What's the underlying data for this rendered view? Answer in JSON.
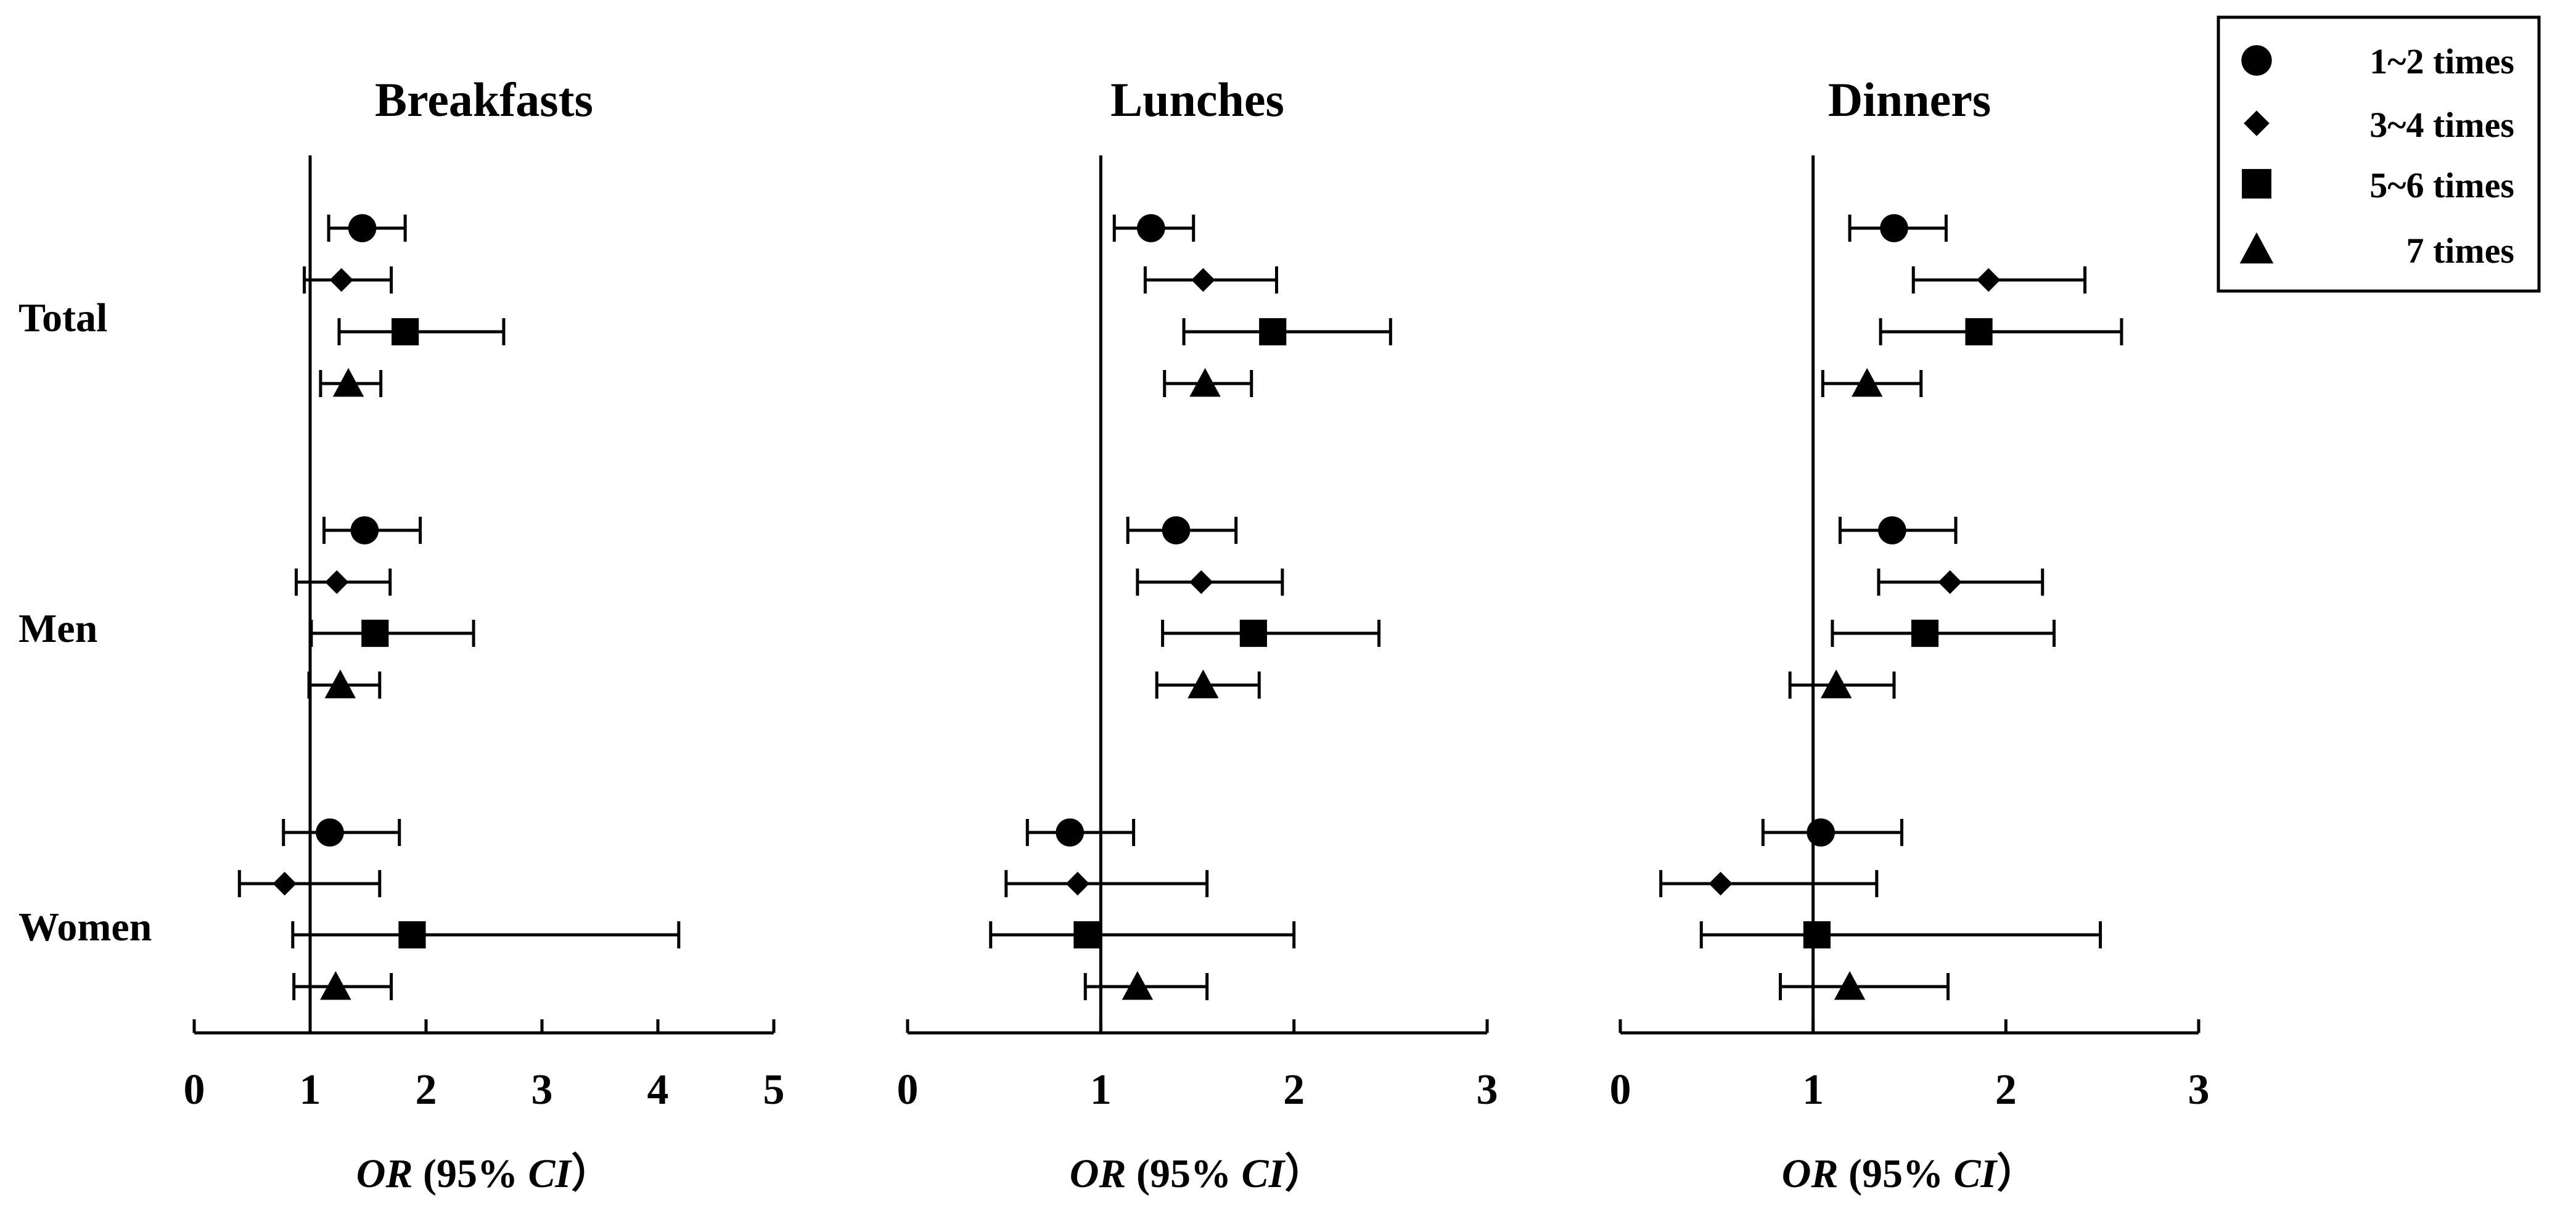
{
  "chart_data": {
    "type": "forest",
    "x_axis_label": {
      "italic_part_1": "OR",
      "plain_part": " (95% ",
      "italic_part_2": "CI",
      "close_paren": "）"
    },
    "row_groups": [
      "Total",
      "Men",
      "Women"
    ],
    "legend": {
      "placement": "top-right",
      "entries": [
        {
          "label": "1~2 times",
          "marker": "circle"
        },
        {
          "label": "3~4 times",
          "marker": "diamond"
        },
        {
          "label": "5~6 times",
          "marker": "square"
        },
        {
          "label": "7 times",
          "marker": "triangle"
        }
      ]
    },
    "panels": [
      {
        "title": "Breakfasts",
        "xlim": [
          0,
          5
        ],
        "ticks": [
          "0",
          "1",
          "2",
          "3",
          "4",
          "5"
        ],
        "reference_line": 1,
        "groups": [
          {
            "name": "Total",
            "points": [
              {
                "series": "1~2 times",
                "or": 1.45,
                "lower": 1.16,
                "upper": 1.82
              },
              {
                "series": "3~4 times",
                "or": 1.27,
                "lower": 0.95,
                "upper": 1.7
              },
              {
                "series": "5~6 times",
                "or": 1.82,
                "lower": 1.25,
                "upper": 2.67
              },
              {
                "series": "7 times",
                "or": 1.33,
                "lower": 1.09,
                "upper": 1.61
              }
            ]
          },
          {
            "name": "Men",
            "points": [
              {
                "series": "1~2 times",
                "or": 1.47,
                "lower": 1.12,
                "upper": 1.95
              },
              {
                "series": "3~4 times",
                "or": 1.23,
                "lower": 0.88,
                "upper": 1.69
              },
              {
                "series": "5~6 times",
                "or": 1.56,
                "lower": 1.01,
                "upper": 2.41
              },
              {
                "series": "7 times",
                "or": 1.26,
                "lower": 0.99,
                "upper": 1.6
              }
            ]
          },
          {
            "name": "Women",
            "points": [
              {
                "series": "1~2 times",
                "or": 1.17,
                "lower": 0.77,
                "upper": 1.77
              },
              {
                "series": "3~4 times",
                "or": 0.78,
                "lower": 0.39,
                "upper": 1.6
              },
              {
                "series": "5~6 times",
                "or": 1.88,
                "lower": 0.85,
                "upper": 4.18
              },
              {
                "series": "7 times",
                "or": 1.22,
                "lower": 0.86,
                "upper": 1.7
              }
            ]
          }
        ]
      },
      {
        "title": "Lunches",
        "xlim": [
          0,
          3
        ],
        "ticks": [
          "0",
          "1",
          "2",
          "3"
        ],
        "reference_line": 1,
        "groups": [
          {
            "name": "Total",
            "points": [
              {
                "series": "1~2 times",
                "or": 1.26,
                "lower": 1.07,
                "upper": 1.48
              },
              {
                "series": "3~4 times",
                "or": 1.53,
                "lower": 1.23,
                "upper": 1.91
              },
              {
                "series": "5~6 times",
                "or": 1.89,
                "lower": 1.43,
                "upper": 2.5
              },
              {
                "series": "7 times",
                "or": 1.54,
                "lower": 1.33,
                "upper": 1.78
              }
            ]
          },
          {
            "name": "Men",
            "points": [
              {
                "series": "1~2 times",
                "or": 1.39,
                "lower": 1.14,
                "upper": 1.7
              },
              {
                "series": "3~4 times",
                "or": 1.52,
                "lower": 1.19,
                "upper": 1.94
              },
              {
                "series": "5~6 times",
                "or": 1.79,
                "lower": 1.32,
                "upper": 2.44
              },
              {
                "series": "7 times",
                "or": 1.53,
                "lower": 1.29,
                "upper": 1.82
              }
            ]
          },
          {
            "name": "Women",
            "points": [
              {
                "series": "1~2 times",
                "or": 0.84,
                "lower": 0.62,
                "upper": 1.17
              },
              {
                "series": "3~4 times",
                "or": 0.88,
                "lower": 0.51,
                "upper": 1.55
              },
              {
                "series": "5~6 times",
                "or": 0.93,
                "lower": 0.43,
                "upper": 2.0
              },
              {
                "series": "7 times",
                "or": 1.19,
                "lower": 0.92,
                "upper": 1.55
              }
            ]
          }
        ]
      },
      {
        "title": "Dinners",
        "xlim": [
          0,
          3
        ],
        "ticks": [
          "0",
          "1",
          "2",
          "3"
        ],
        "reference_line": 1,
        "groups": [
          {
            "name": "Total",
            "points": [
              {
                "series": "1~2 times",
                "or": 1.42,
                "lower": 1.19,
                "upper": 1.69
              },
              {
                "series": "3~4 times",
                "or": 1.91,
                "lower": 1.52,
                "upper": 2.41
              },
              {
                "series": "5~6 times",
                "or": 1.86,
                "lower": 1.35,
                "upper": 2.6
              },
              {
                "series": "7 times",
                "or": 1.28,
                "lower": 1.05,
                "upper": 1.56
              }
            ]
          },
          {
            "name": "Men",
            "points": [
              {
                "series": "1~2 times",
                "or": 1.41,
                "lower": 1.14,
                "upper": 1.74
              },
              {
                "series": "3~4 times",
                "or": 1.71,
                "lower": 1.34,
                "upper": 2.19
              },
              {
                "series": "5~6 times",
                "or": 1.58,
                "lower": 1.1,
                "upper": 2.25
              },
              {
                "series": "7 times",
                "or": 1.12,
                "lower": 0.88,
                "upper": 1.42
              }
            ]
          },
          {
            "name": "Women",
            "points": [
              {
                "series": "1~2 times",
                "or": 1.04,
                "lower": 0.74,
                "upper": 1.46
              },
              {
                "series": "3~4 times",
                "or": 0.52,
                "lower": 0.21,
                "upper": 1.33
              },
              {
                "series": "5~6 times",
                "or": 1.02,
                "lower": 0.42,
                "upper": 2.49
              },
              {
                "series": "7 times",
                "or": 1.19,
                "lower": 0.83,
                "upper": 1.7
              }
            ]
          }
        ]
      }
    ]
  }
}
